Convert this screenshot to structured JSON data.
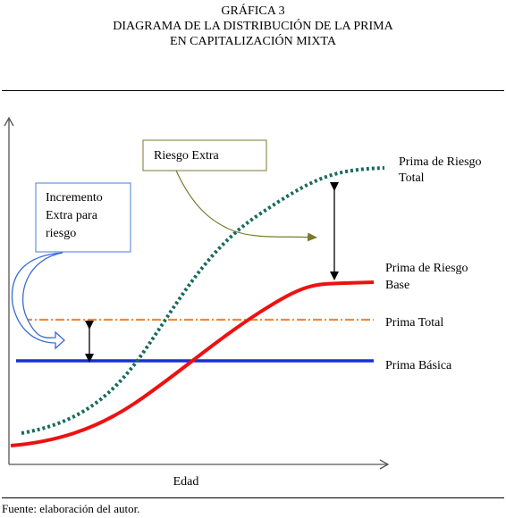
{
  "title": {
    "line1": "GRÁFICA 3",
    "line2": "DIAGRAMA DE LA DISTRIBUCIÓN DE LA PRIMA",
    "line3": "EN CAPITALIZACIÓN MIXTA"
  },
  "axis": {
    "xlabel": "Edad"
  },
  "curves": {
    "total_risk_line1": "Prima de Riesgo",
    "total_risk_line2": "Total",
    "base_risk_line1": "Prima de Riesgo",
    "base_risk_line2": "Base",
    "total_premium": "Prima Total",
    "basic_premium": "Prima Básica"
  },
  "callouts": {
    "extra_risk": "Riesgo Extra",
    "increment_line1": "Incremento",
    "increment_line2": "Extra para",
    "increment_line3": "riesgo"
  },
  "source": "Fuente: elaboración del autor.",
  "colors": {
    "total_risk": "#1a6b5e",
    "base_risk": "#ee1111",
    "total_premium": "#f08a3a",
    "basic_premium": "#1a2fd0",
    "callout_border": "#7a7a30",
    "increment_border": "#4a7bd8",
    "increment_arrow": "#3a6bd0"
  }
}
